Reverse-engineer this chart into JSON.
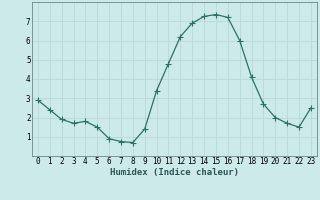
{
  "x": [
    0,
    1,
    2,
    3,
    4,
    5,
    6,
    7,
    8,
    9,
    10,
    11,
    12,
    13,
    14,
    15,
    16,
    17,
    18,
    19,
    20,
    21,
    22,
    23
  ],
  "y": [
    2.9,
    2.4,
    1.9,
    1.7,
    1.8,
    1.5,
    0.9,
    0.75,
    0.7,
    1.4,
    3.4,
    4.8,
    6.2,
    6.9,
    7.25,
    7.35,
    7.2,
    6.0,
    4.1,
    2.7,
    2.0,
    1.7,
    1.5,
    2.5
  ],
  "line_color": "#2d7068",
  "marker": "+",
  "marker_size": 4,
  "bg_color": "#cdeaea",
  "grid_color": "#b8d8d8",
  "xlabel": "Humidex (Indice chaleur)",
  "xlabel_fontsize": 6.5,
  "tick_fontsize": 5.5,
  "ylim": [
    0,
    8
  ],
  "xlim": [
    -0.5,
    23.5
  ],
  "yticks": [
    1,
    2,
    3,
    4,
    5,
    6,
    7
  ],
  "xticks": [
    0,
    1,
    2,
    3,
    4,
    5,
    6,
    7,
    8,
    9,
    10,
    11,
    12,
    13,
    14,
    15,
    16,
    17,
    18,
    19,
    20,
    21,
    22,
    23
  ]
}
